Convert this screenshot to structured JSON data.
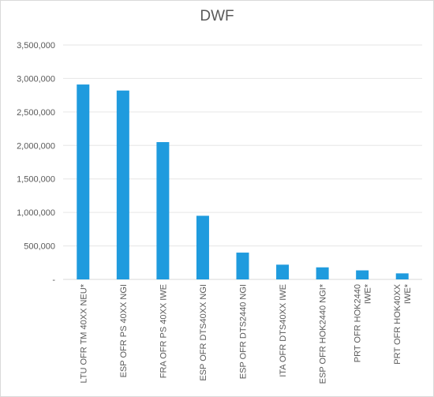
{
  "chart_data": {
    "type": "bar",
    "title": "DWF",
    "xlabel": "",
    "ylabel": "",
    "ylim": [
      0,
      3500000
    ],
    "yticks": [
      0,
      500000,
      1000000,
      1500000,
      2000000,
      2500000,
      3000000,
      3500000
    ],
    "ytick_labels": [
      "-",
      "500,000",
      "1,000,000",
      "1,500,000",
      "2,000,000",
      "2,500,000",
      "3,000,000",
      "3,500,000"
    ],
    "grid": true,
    "legend": "none",
    "bar_color": "#1f9bde",
    "categories": [
      [
        "LTU OFR TM 40XX NEU*"
      ],
      [
        "ESP OFR PS 40XX NGI"
      ],
      [
        "FRA OFR PS 40XX IWE"
      ],
      [
        "ESP OFR DTS40XX NGI"
      ],
      [
        "ESP OFR DTS2440 NGI"
      ],
      [
        "ITA OFR DTS40XX IWE"
      ],
      [
        "ESP OFR HOK2440 NGI*"
      ],
      [
        "PRT OFR HOK2440",
        "IWE*"
      ],
      [
        "PRT OFR HOK40XX",
        "IWE*"
      ]
    ],
    "values": [
      2910000,
      2820000,
      2050000,
      950000,
      400000,
      220000,
      180000,
      135000,
      90000
    ]
  }
}
